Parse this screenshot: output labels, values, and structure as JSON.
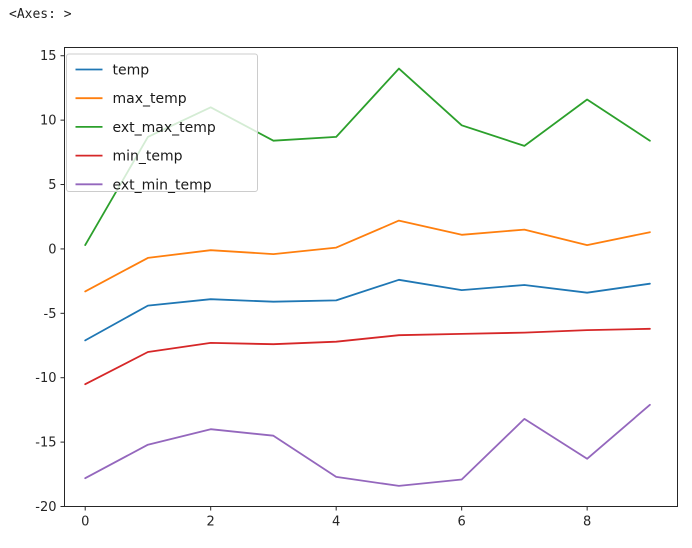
{
  "console_text": "<Axes: >",
  "chart_data": {
    "type": "line",
    "title": "",
    "xlabel": "",
    "ylabel": "",
    "grid": false,
    "legend_position": "upper left",
    "x": [
      0,
      1,
      2,
      3,
      4,
      5,
      6,
      7,
      8,
      9
    ],
    "x_ticks": [
      0,
      2,
      4,
      6,
      8
    ],
    "y_ticks": [
      15,
      10,
      5,
      0,
      -5,
      -10,
      -15,
      -20
    ],
    "xlim": [
      -0.33,
      9.44
    ],
    "ylim": [
      -20,
      15.64
    ],
    "series": [
      {
        "name": "temp",
        "color": "#1f77b4",
        "values": [
          -7.1,
          -4.4,
          -3.9,
          -4.1,
          -4.0,
          -2.4,
          -3.2,
          -2.8,
          -3.4,
          -2.7
        ]
      },
      {
        "name": "max_temp",
        "color": "#ff7f0e",
        "values": [
          -3.3,
          -0.7,
          -0.1,
          -0.4,
          0.1,
          2.2,
          1.1,
          1.5,
          0.3,
          1.3
        ]
      },
      {
        "name": "ext_max_temp",
        "color": "#2ca02c",
        "values": [
          0.3,
          8.7,
          11.0,
          8.4,
          8.7,
          14.0,
          9.6,
          8.0,
          11.6,
          8.4
        ]
      },
      {
        "name": "min_temp",
        "color": "#d62728",
        "values": [
          -10.5,
          -8.0,
          -7.3,
          -7.4,
          -7.2,
          -6.7,
          -6.6,
          -6.5,
          -6.3,
          -6.2
        ]
      },
      {
        "name": "ext_min_temp",
        "color": "#9467bd",
        "values": [
          -17.8,
          -15.2,
          -14.0,
          -14.5,
          -17.7,
          -18.4,
          -17.9,
          -13.2,
          -16.3,
          -12.1
        ]
      }
    ]
  },
  "style_tokens": {
    "axis_color": "#262626",
    "tick_label_color": "#262626",
    "legend_border_color": "#cccccc",
    "legend_bg": "rgba(255,255,255,0.8)"
  }
}
